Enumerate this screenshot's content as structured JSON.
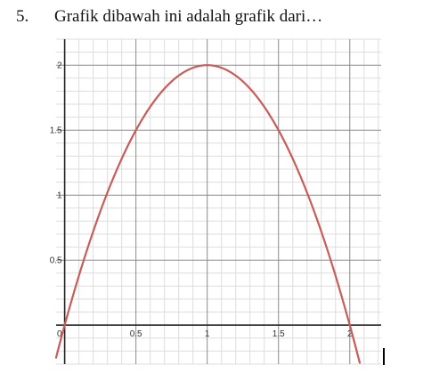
{
  "question": {
    "number": "5.",
    "text": "Grafik dibawah ini adalah grafik dari…"
  },
  "chart_data": {
    "type": "line",
    "title": "",
    "xlabel": "",
    "ylabel": "",
    "xlim": [
      -0.06,
      2.22
    ],
    "ylim": [
      -0.3,
      2.2
    ],
    "grid": true,
    "x_ticks": [
      "0",
      "0.5",
      "1",
      "1.5",
      "2"
    ],
    "y_ticks": [
      "0.5",
      "1",
      "1.5",
      "2"
    ],
    "x_tick_values": [
      0,
      0.5,
      1,
      1.5,
      2
    ],
    "y_tick_values": [
      0.5,
      1,
      1.5,
      2
    ],
    "series": [
      {
        "color": "#c95b58",
        "x": [
          -0.06,
          0,
          0.1,
          0.2,
          0.3,
          0.4,
          0.5,
          0.6,
          0.7,
          0.8,
          0.9,
          1.0,
          1.1,
          1.2,
          1.3,
          1.4,
          1.5,
          1.6,
          1.7,
          1.8,
          1.9,
          2.0,
          2.07
        ],
        "y": [
          -0.25,
          0,
          0.38,
          0.72,
          1.02,
          1.28,
          1.5,
          1.68,
          1.82,
          1.92,
          1.98,
          2.0,
          1.98,
          1.92,
          1.82,
          1.68,
          1.5,
          1.28,
          1.02,
          0.72,
          0.38,
          0,
          -0.29
        ]
      }
    ]
  },
  "colors": {
    "curve": "#c95b58",
    "major_grid": "#8a8a8a",
    "minor_grid": "#dddddd",
    "axis": "#222222"
  }
}
